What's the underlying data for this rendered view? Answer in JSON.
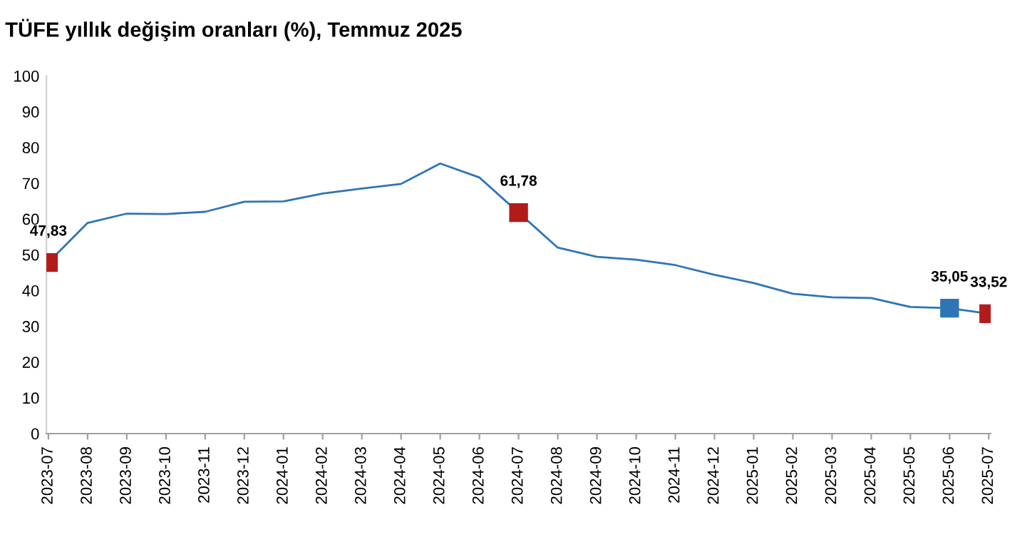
{
  "chart_data": {
    "type": "line",
    "title": "TÜFE yıllık değişim oranları (%), Temmuz 2025",
    "categories": [
      "2023-07",
      "2023-08",
      "2023-09",
      "2023-10",
      "2023-11",
      "2023-12",
      "2024-01",
      "2024-02",
      "2024-03",
      "2024-04",
      "2024-05",
      "2024-06",
      "2024-07",
      "2024-08",
      "2024-09",
      "2024-10",
      "2024-11",
      "2024-12",
      "2025-01",
      "2025-02",
      "2025-03",
      "2025-04",
      "2025-05",
      "2025-06",
      "2025-07"
    ],
    "series": [
      {
        "color": "#2e75b6",
        "values": [
          47.83,
          58.9,
          61.5,
          61.4,
          62.0,
          64.8,
          64.9,
          67.1,
          68.5,
          69.8,
          75.5,
          71.6,
          61.78,
          52.0,
          49.4,
          48.6,
          47.1,
          44.4,
          42.1,
          39.1,
          38.1,
          37.9,
          35.4,
          35.05,
          33.52
        ]
      },
      {
        "type": "scatter",
        "marker": "square",
        "colors": [
          "#b31b1b",
          null,
          null,
          null,
          null,
          null,
          null,
          null,
          null,
          null,
          null,
          null,
          "#b31b1b",
          null,
          null,
          null,
          null,
          null,
          null,
          null,
          null,
          null,
          null,
          "#2e75b6",
          "#b31b1b"
        ],
        "values": [
          47.83,
          null,
          null,
          null,
          null,
          null,
          null,
          null,
          null,
          null,
          null,
          null,
          61.78,
          null,
          null,
          null,
          null,
          null,
          null,
          null,
          null,
          null,
          null,
          35.05,
          33.52
        ],
        "value_labels": [
          "47,83",
          null,
          null,
          null,
          null,
          null,
          null,
          null,
          null,
          null,
          null,
          null,
          "61,78",
          null,
          null,
          null,
          null,
          null,
          null,
          null,
          null,
          null,
          null,
          "35,05",
          "33,52"
        ]
      }
    ],
    "ylim": [
      0,
      100
    ],
    "yticks": [
      0,
      10,
      20,
      30,
      40,
      50,
      60,
      70,
      80,
      90,
      100
    ],
    "grid": false,
    "legend": false
  }
}
